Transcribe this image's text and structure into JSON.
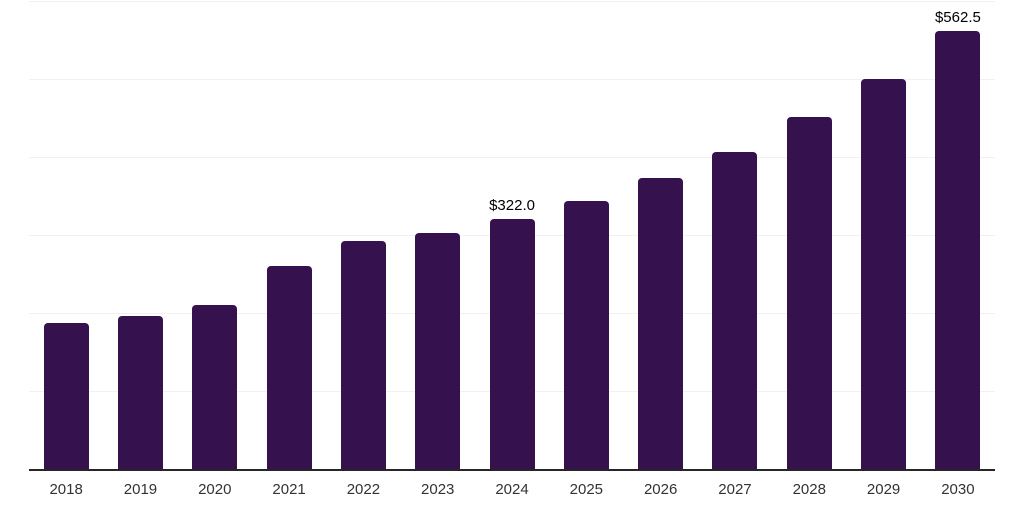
{
  "chart_data": {
    "type": "bar",
    "title": "",
    "xlabel": "",
    "ylabel": "",
    "categories": [
      "2018",
      "2019",
      "2020",
      "2021",
      "2022",
      "2023",
      "2024",
      "2025",
      "2026",
      "2027",
      "2028",
      "2029",
      "2030"
    ],
    "values": [
      189,
      197,
      212,
      261,
      293,
      304,
      322.0,
      345,
      375,
      408,
      452,
      501,
      562.5
    ],
    "bar_labels": [
      "",
      "",
      "",
      "",
      "",
      "",
      "$322.0",
      "",
      "",
      "",
      "",
      "",
      "$562.5"
    ],
    "ylim": [
      0,
      600
    ],
    "gridline_interval": 100,
    "grid": true,
    "legend": "none",
    "colors": {
      "bar": "#35114D",
      "gridline": "#f1f1f1",
      "axis_line": "#262626",
      "tick_label": "#333333",
      "value_label": "#000000"
    }
  }
}
